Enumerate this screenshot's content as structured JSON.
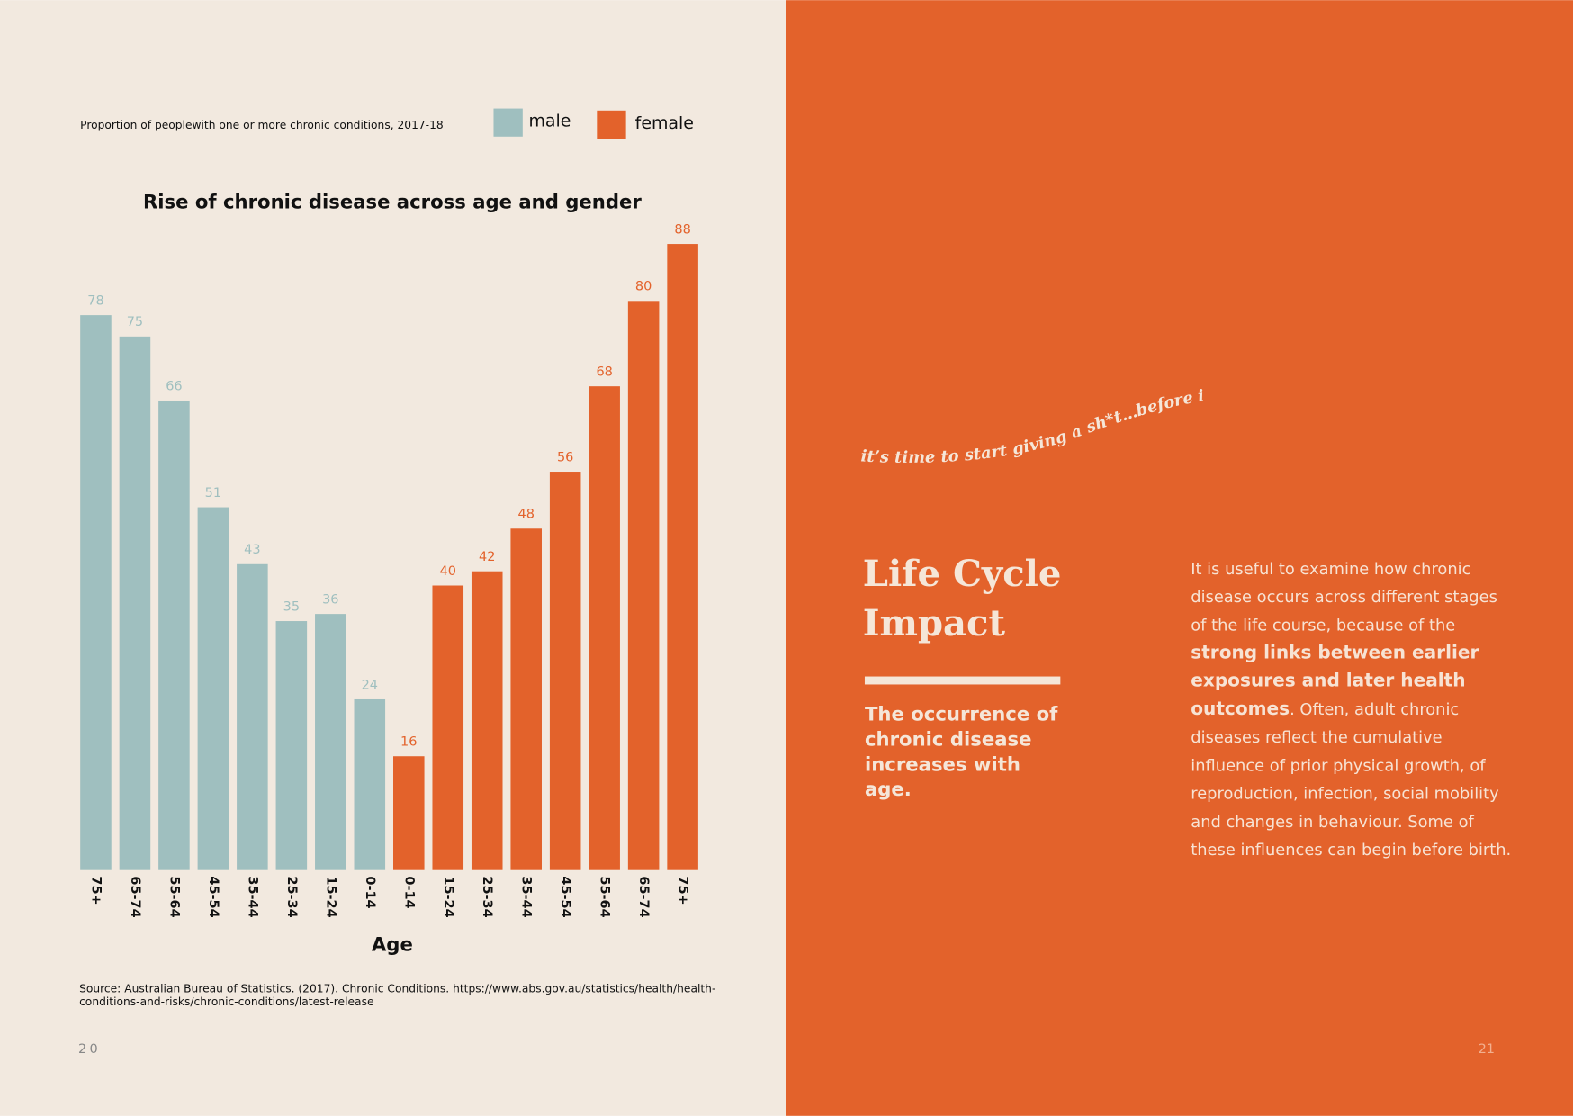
{
  "chart_data": {
    "type": "bar",
    "title": "Rise of chronic disease across age and gender",
    "subtitle": "Proportion of peoplewith one or more chronic conditions, 2017-18",
    "x_label": "Age",
    "source": "Source: Australian Bureau of Statistics. (2017). Chronic Conditions. https://www.abs.gov.au/statistics/health/health-conditions-and-risks/chronic-conditions/latest-release",
    "series": [
      {
        "name": "male",
        "color": "#9fbfbf",
        "categories": [
          "75+",
          "65-74",
          "55-64",
          "45-54",
          "35-44",
          "25-34",
          "15-24",
          "0-14"
        ],
        "values": [
          78,
          75,
          66,
          51,
          43,
          35,
          36,
          24
        ]
      },
      {
        "name": "female",
        "color": "#e3622b",
        "categories": [
          "0-14",
          "15-24",
          "25-34",
          "35-44",
          "45-54",
          "55-64",
          "65-74",
          "75+"
        ],
        "values": [
          16,
          40,
          42,
          48,
          56,
          68,
          80,
          88
        ]
      }
    ]
  },
  "tagline": "it’s time to start giving a sh*t…before it’s too late",
  "heading": "Life Cycle Impact",
  "subheading": "The occurrence of chronic disease increases with age.",
  "body": [
    {
      "text": "It is useful to examine how chronic disease occurs across different stages of the life course, because of the "
    },
    {
      "text": "strong links between earlier exposures and later health outcomes",
      "bold": true
    },
    {
      "text": ". Often, adult chronic diseases reflect the cumulative influence of prior physical growth, of reproduction, infection, social mobility and changes in behaviour. Some of these influences can begin before birth."
    }
  ],
  "page_numbers": [
    "20",
    "21"
  ]
}
